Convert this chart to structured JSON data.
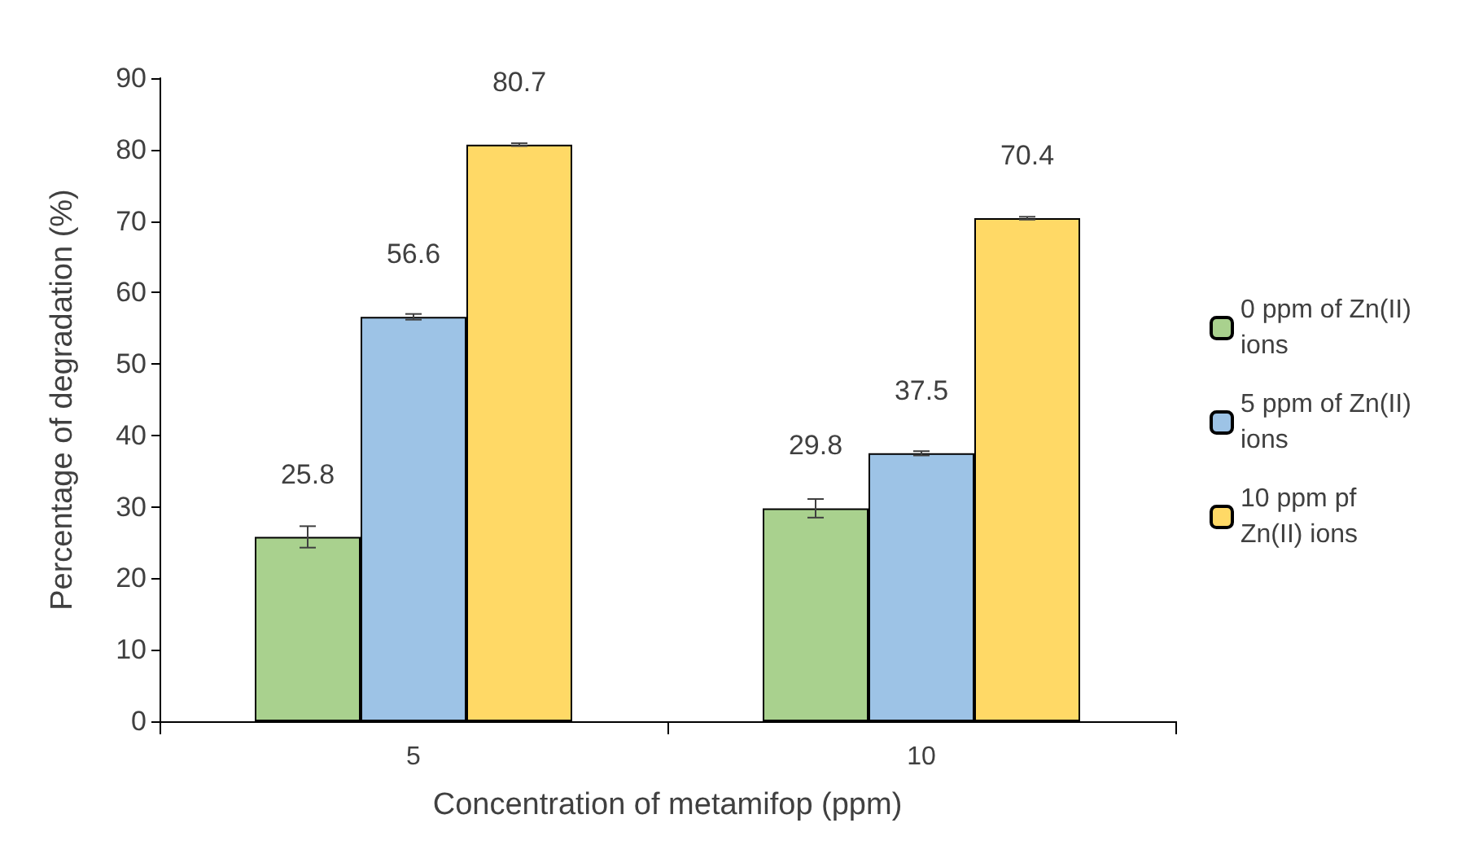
{
  "chart_data": {
    "type": "bar",
    "xlabel": "Concentration of metamifop (ppm)",
    "ylabel": "Percentage of degradation (%)",
    "categories": [
      "5",
      "10"
    ],
    "series": [
      {
        "name": "0 ppm of Zn(II) ions",
        "color": "#a9d18e",
        "values": [
          25.8,
          29.8
        ],
        "errors": [
          1.5,
          1.3
        ]
      },
      {
        "name": "5 ppm of Zn(II) ions",
        "color": "#9dc3e6",
        "values": [
          56.6,
          37.5
        ],
        "errors": [
          0.4,
          0.3
        ]
      },
      {
        "name": "10 ppm pf Zn(II) ions",
        "color": "#ffd966",
        "values": [
          80.7,
          70.4
        ],
        "errors": [
          0.2,
          0.2
        ]
      }
    ],
    "ylim": [
      0,
      90
    ],
    "yticks": [
      0,
      10,
      20,
      30,
      40,
      50,
      60,
      70,
      80,
      90
    ],
    "grid": false,
    "legend": "right",
    "data_labels": true
  }
}
